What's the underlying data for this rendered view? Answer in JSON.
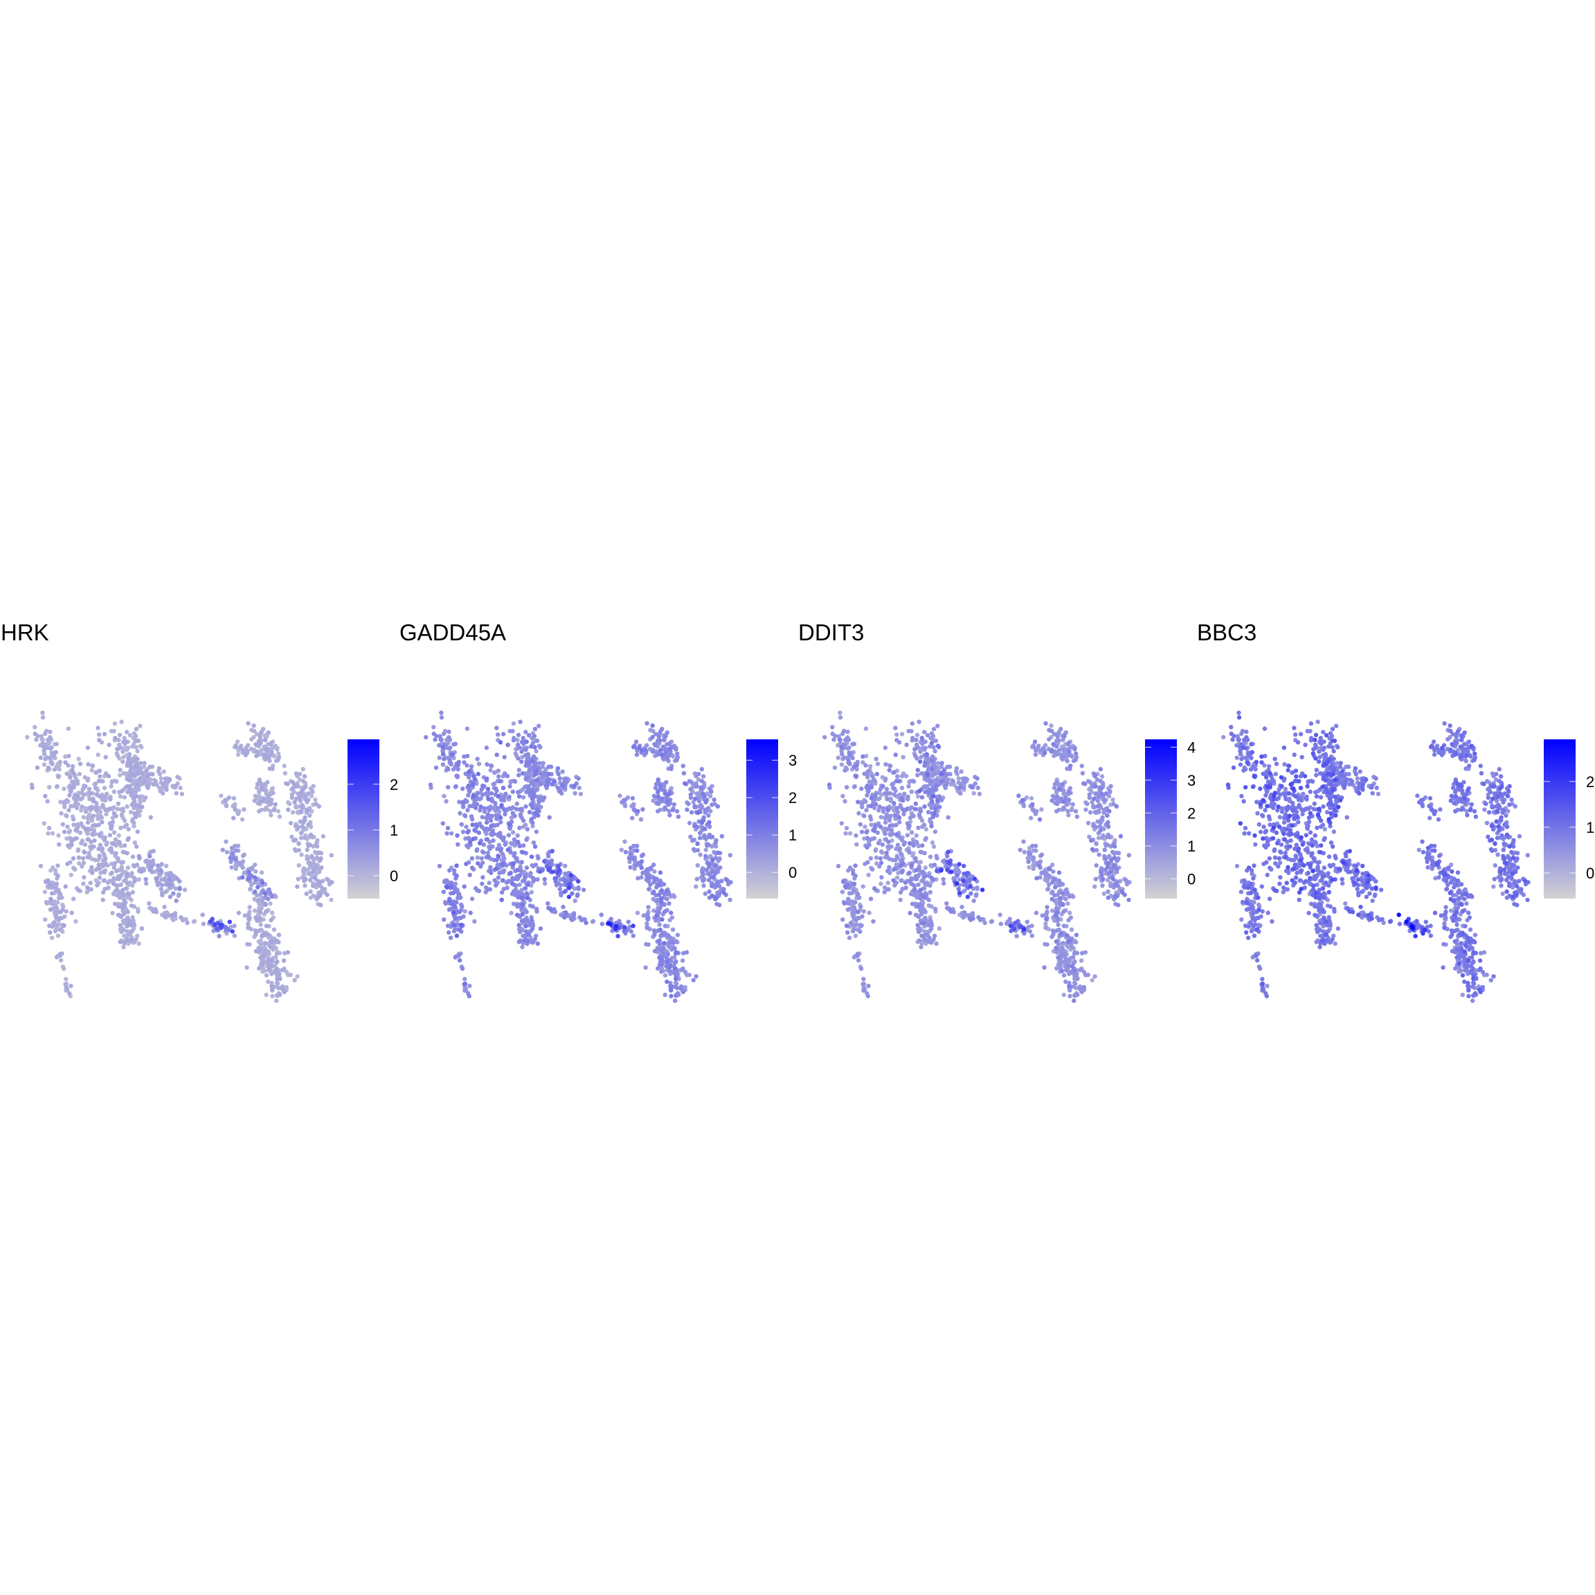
{
  "chart_data": [
    {
      "type": "scatter",
      "title": "HRK",
      "color_low": "#D3D3D3",
      "color_high": "#0000FF",
      "legend_range": [
        -0.5,
        2.98
      ],
      "legend_ticks": [
        "0",
        "1",
        "2"
      ],
      "legend_tick_values": [
        0,
        1,
        2
      ],
      "legend_placement": "right",
      "axes": "none",
      "grid": false
    },
    {
      "type": "scatter",
      "title": "GADD45A",
      "color_low": "#D3D3D3",
      "color_high": "#0000FF",
      "legend_range": [
        -0.7,
        3.56
      ],
      "legend_ticks": [
        "0",
        "1",
        "2",
        "3"
      ],
      "legend_tick_values": [
        0,
        1,
        2,
        3
      ],
      "legend_placement": "right",
      "axes": "none",
      "grid": false
    },
    {
      "type": "scatter",
      "title": "DDIT3",
      "color_low": "#D3D3D3",
      "color_high": "#0000FF",
      "legend_range": [
        -0.6,
        4.24
      ],
      "legend_ticks": [
        "0",
        "1",
        "2",
        "3",
        "4"
      ],
      "legend_tick_values": [
        0,
        1,
        2,
        3,
        4
      ],
      "legend_placement": "right",
      "axes": "none",
      "grid": false
    },
    {
      "type": "scatter",
      "title": "BBC3",
      "color_low": "#D3D3D3",
      "color_high": "#0000FF",
      "legend_range": [
        -0.56,
        2.92
      ],
      "legend_ticks": [
        "0",
        "1",
        "2"
      ],
      "legend_tick_values": [
        0,
        1,
        2
      ],
      "legend_placement": "right",
      "axes": "none",
      "grid": false
    }
  ]
}
